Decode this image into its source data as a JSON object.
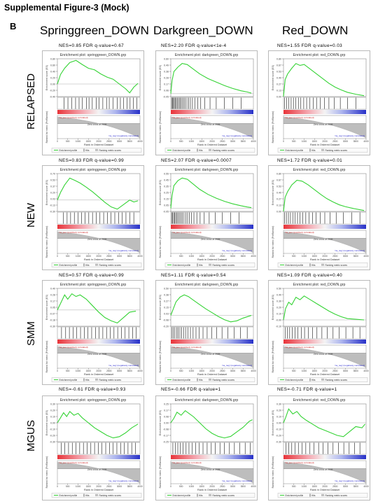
{
  "figure_title": "Supplemental Figure-3 (Mock)",
  "panel_letter": "B",
  "columns": [
    "Springgreen_DOWN",
    "Darkgreen_DOWN",
    "Red_DOWN"
  ],
  "rows": [
    "RELAPSED",
    "NEW",
    "SMM",
    "MGUS"
  ],
  "panel_text": {
    "enrich_titles": [
      "Enrichment plot: springgreen_DOWN.grp",
      "Enrichment plot: darkgreen_DOWN.grp",
      "Enrichment plot: red_DOWN.grp"
    ],
    "x_axis_label": "Rank in Ordered Dataset",
    "es_axis_label": "Enrichment score (ES)",
    "metric_axis_label": "Ranked list metric (PreRanked)",
    "zero_cross_label": "Zero cross at 2009",
    "positive_label": "'na_pos' (positively correlated)",
    "negative_label": "'na_neg' (negatively correlated)",
    "legend_es": "Enrichment profile",
    "legend_hits": "Hits",
    "legend_metric": "Ranking metric scores"
  },
  "chart_data": {
    "type": "line",
    "title": "",
    "subtitle": "",
    "xlabel": "Rank in Ordered Dataset",
    "ylabel": "Enrichment score (ES)",
    "xlim": [
      0,
      4000
    ],
    "line_color": "#35d335",
    "grid": false,
    "legend": "bottom",
    "panels": [
      {
        "row": "RELAPSED",
        "column": "Springgreen_DOWN",
        "stat_label": "NES=0.85 FDR q-value=0.67",
        "ylim": [
          -0.4,
          0.8
        ],
        "es_profile": [
          [
            0,
            0.0
          ],
          [
            150,
            0.3
          ],
          [
            350,
            0.5
          ],
          [
            600,
            0.68
          ],
          [
            900,
            0.75
          ],
          [
            1200,
            0.62
          ],
          [
            1500,
            0.5
          ],
          [
            1800,
            0.45
          ],
          [
            2100,
            0.32
          ],
          [
            2400,
            0.22
          ],
          [
            2700,
            0.15
          ],
          [
            3000,
            0.0
          ],
          [
            3300,
            -0.15
          ],
          [
            3500,
            -0.28
          ],
          [
            3700,
            -0.1
          ],
          [
            3900,
            0.02
          ]
        ],
        "hits": [
          320,
          510,
          700,
          880,
          1050,
          1210,
          1400,
          1530,
          1690,
          1880,
          2020,
          2200,
          2380,
          2510,
          2700,
          2900,
          3050,
          3200,
          3380,
          3520,
          3680,
          3850
        ]
      },
      {
        "row": "RELAPSED",
        "column": "Darkgreen_DOWN",
        "stat_label": "NES=2.20 FDR q-value<1e-4",
        "ylim": [
          -0.05,
          0.6
        ],
        "es_profile": [
          [
            0,
            0.0
          ],
          [
            60,
            0.22
          ],
          [
            150,
            0.38
          ],
          [
            350,
            0.46
          ],
          [
            550,
            0.52
          ],
          [
            800,
            0.5
          ],
          [
            1100,
            0.42
          ],
          [
            1400,
            0.34
          ],
          [
            1800,
            0.26
          ],
          [
            2200,
            0.2
          ],
          [
            2600,
            0.14
          ],
          [
            3000,
            0.09
          ],
          [
            3400,
            0.05
          ],
          [
            3700,
            0.03
          ],
          [
            3900,
            0.01
          ]
        ],
        "hits": [
          40,
          80,
          130,
          170,
          220,
          270,
          320,
          380,
          440,
          500,
          560,
          620,
          700,
          780,
          860,
          950,
          1050,
          1160,
          1300,
          1450,
          1650,
          1900,
          2200,
          2600,
          3000,
          3400
        ]
      },
      {
        "row": "RELAPSED",
        "column": "Red_DOWN",
        "stat_label": "NES=1.55 FDR q-value=0.03",
        "ylim": [
          0,
          0.8
        ],
        "es_profile": [
          [
            0,
            0.0
          ],
          [
            80,
            0.36
          ],
          [
            200,
            0.48
          ],
          [
            400,
            0.6
          ],
          [
            600,
            0.7
          ],
          [
            800,
            0.66
          ],
          [
            1000,
            0.68
          ],
          [
            1300,
            0.58
          ],
          [
            1600,
            0.48
          ],
          [
            1900,
            0.38
          ],
          [
            2200,
            0.28
          ],
          [
            2500,
            0.2
          ],
          [
            2800,
            0.14
          ],
          [
            3100,
            0.09
          ],
          [
            3500,
            0.05
          ],
          [
            3900,
            0.02
          ]
        ],
        "hits": [
          60,
          150,
          260,
          370,
          480,
          600,
          720,
          840,
          980,
          1120,
          1280,
          1440,
          1600,
          1780,
          1980,
          2200,
          2450,
          2750,
          3100,
          3500
        ]
      },
      {
        "row": "NEW",
        "column": "Springgreen_DOWN",
        "stat_label": "NES=0.83 FDR q-value=0.99",
        "ylim": [
          -0.3,
          0.7
        ],
        "es_profile": [
          [
            0,
            0.0
          ],
          [
            150,
            0.2
          ],
          [
            350,
            0.4
          ],
          [
            600,
            0.58
          ],
          [
            850,
            0.52
          ],
          [
            1100,
            0.45
          ],
          [
            1400,
            0.34
          ],
          [
            1700,
            0.22
          ],
          [
            2000,
            0.08
          ],
          [
            2300,
            -0.06
          ],
          [
            2600,
            -0.18
          ],
          [
            2900,
            -0.24
          ],
          [
            3200,
            -0.12
          ],
          [
            3500,
            0.0
          ],
          [
            3700,
            -0.05
          ],
          [
            3900,
            -0.02
          ]
        ],
        "hits": [
          280,
          470,
          640,
          820,
          1000,
          1170,
          1340,
          1520,
          1700,
          1880,
          2060,
          2240,
          2420,
          2600,
          2780,
          2960,
          3140,
          3320,
          3500,
          3700
        ]
      },
      {
        "row": "NEW",
        "column": "Darkgreen_DOWN",
        "stat_label": "NES=2.07 FDR q-value=0.0007",
        "ylim": [
          -0.05,
          0.55
        ],
        "es_profile": [
          [
            0,
            0.0
          ],
          [
            60,
            0.2
          ],
          [
            150,
            0.36
          ],
          [
            350,
            0.44
          ],
          [
            550,
            0.48
          ],
          [
            800,
            0.46
          ],
          [
            1100,
            0.38
          ],
          [
            1400,
            0.3
          ],
          [
            1800,
            0.22
          ],
          [
            2200,
            0.16
          ],
          [
            2600,
            0.11
          ],
          [
            3000,
            0.07
          ],
          [
            3400,
            0.04
          ],
          [
            3700,
            0.02
          ],
          [
            3900,
            0.01
          ]
        ],
        "hits": [
          40,
          90,
          140,
          190,
          240,
          300,
          360,
          420,
          490,
          560,
          640,
          720,
          810,
          900,
          1000,
          1120,
          1260,
          1420,
          1620,
          1860,
          2150,
          2500,
          2900,
          3300
        ]
      },
      {
        "row": "NEW",
        "column": "Red_DOWN",
        "stat_label": "NES=1.72 FDR q-value=0.01",
        "ylim": [
          0,
          0.8
        ],
        "es_profile": [
          [
            0,
            0.0
          ],
          [
            80,
            0.3
          ],
          [
            200,
            0.42
          ],
          [
            400,
            0.56
          ],
          [
            650,
            0.66
          ],
          [
            900,
            0.64
          ],
          [
            1200,
            0.56
          ],
          [
            1500,
            0.46
          ],
          [
            1800,
            0.36
          ],
          [
            2100,
            0.27
          ],
          [
            2400,
            0.2
          ],
          [
            2700,
            0.14
          ],
          [
            3000,
            0.1
          ],
          [
            3400,
            0.06
          ],
          [
            3900,
            0.02
          ]
        ],
        "hits": [
          60,
          140,
          240,
          340,
          450,
          560,
          680,
          800,
          940,
          1080,
          1240,
          1400,
          1580,
          1780,
          2000,
          2250,
          2550,
          2900,
          3300,
          3700
        ]
      },
      {
        "row": "SMM",
        "column": "Springgreen_DOWN",
        "stat_label": "NES=0.57 FDR q-value=0.99",
        "ylim": [
          -0.3,
          0.4
        ],
        "es_profile": [
          [
            0,
            0.0
          ],
          [
            150,
            0.12
          ],
          [
            350,
            0.28
          ],
          [
            500,
            0.2
          ],
          [
            700,
            0.3
          ],
          [
            900,
            0.25
          ],
          [
            1100,
            0.28
          ],
          [
            1400,
            0.2
          ],
          [
            1700,
            0.08
          ],
          [
            2000,
            -0.04
          ],
          [
            2300,
            -0.14
          ],
          [
            2600,
            -0.2
          ],
          [
            2900,
            -0.24
          ],
          [
            3200,
            -0.14
          ],
          [
            3500,
            -0.04
          ],
          [
            3800,
            -0.02
          ]
        ],
        "hits": [
          200,
          400,
          580,
          760,
          940,
          1120,
          1300,
          1480,
          1660,
          1840,
          2020,
          2200,
          2380,
          2560,
          2740,
          2920,
          3100,
          3280,
          3460,
          3640,
          3820
        ]
      },
      {
        "row": "SMM",
        "column": "Darkgreen_DOWN",
        "stat_label": "NES=1.11 FDR q-value=0.54",
        "ylim": [
          -0.2,
          0.5
        ],
        "es_profile": [
          [
            0,
            0.0
          ],
          [
            100,
            0.1
          ],
          [
            250,
            0.25
          ],
          [
            450,
            0.34
          ],
          [
            650,
            0.38
          ],
          [
            850,
            0.35
          ],
          [
            1100,
            0.28
          ],
          [
            1400,
            0.2
          ],
          [
            1700,
            0.12
          ],
          [
            2000,
            0.05
          ],
          [
            2300,
            -0.02
          ],
          [
            2600,
            -0.08
          ],
          [
            2900,
            -0.12
          ],
          [
            3200,
            -0.1
          ],
          [
            3500,
            -0.05
          ],
          [
            3900,
            0.0
          ]
        ],
        "hits": [
          60,
          130,
          200,
          280,
          360,
          440,
          530,
          620,
          720,
          830,
          950,
          1080,
          1220,
          1380,
          1560,
          1760,
          1980,
          2220,
          2480,
          2760,
          3060,
          3380,
          3700
        ]
      },
      {
        "row": "SMM",
        "column": "Red_DOWN",
        "stat_label": "NES=1.09 FDR q-value=0.40",
        "ylim": [
          -0.1,
          0.5
        ],
        "es_profile": [
          [
            0,
            0.0
          ],
          [
            100,
            0.18
          ],
          [
            250,
            0.28
          ],
          [
            400,
            0.24
          ],
          [
            600,
            0.36
          ],
          [
            800,
            0.32
          ],
          [
            1000,
            0.38
          ],
          [
            1300,
            0.32
          ],
          [
            1600,
            0.26
          ],
          [
            1900,
            0.2
          ],
          [
            2200,
            0.14
          ],
          [
            2500,
            0.09
          ],
          [
            2800,
            0.05
          ],
          [
            3100,
            0.02
          ],
          [
            3500,
            0.01
          ],
          [
            3900,
            0.0
          ]
        ],
        "hits": [
          80,
          180,
          300,
          420,
          560,
          700,
          860,
          1020,
          1200,
          1400,
          1620,
          1860,
          2120,
          2400,
          2700,
          3020,
          3360,
          3700
        ]
      },
      {
        "row": "MGUS",
        "column": "Springgreen_DOWN",
        "stat_label": "NES=-0.61 FDR q-value=0.93",
        "ylim": [
          -0.3,
          0.3
        ],
        "es_profile": [
          [
            0,
            0.0
          ],
          [
            150,
            0.08
          ],
          [
            300,
            0.16
          ],
          [
            450,
            0.1
          ],
          [
            600,
            0.18
          ],
          [
            800,
            0.12
          ],
          [
            1000,
            0.15
          ],
          [
            1200,
            0.08
          ],
          [
            1500,
            0.0
          ],
          [
            1800,
            -0.08
          ],
          [
            2100,
            -0.14
          ],
          [
            2400,
            -0.2
          ],
          [
            2700,
            -0.24
          ],
          [
            3000,
            -0.22
          ],
          [
            3300,
            -0.16
          ],
          [
            3600,
            -0.08
          ],
          [
            3900,
            -0.02
          ]
        ],
        "hits": [
          180,
          360,
          540,
          720,
          900,
          1080,
          1260,
          1440,
          1620,
          1800,
          1980,
          2160,
          2340,
          2520,
          2700,
          2880,
          3060,
          3240,
          3420,
          3600,
          3780
        ]
      },
      {
        "row": "MGUS",
        "column": "Darkgreen_DOWN",
        "stat_label": "NES=-0.66 FDR q-value=1",
        "ylim": [
          -0.25,
          0.25
        ],
        "es_profile": [
          [
            0,
            0.0
          ],
          [
            150,
            0.06
          ],
          [
            300,
            0.14
          ],
          [
            500,
            0.1
          ],
          [
            700,
            0.16
          ],
          [
            900,
            0.12
          ],
          [
            1100,
            0.08
          ],
          [
            1400,
            0.0
          ],
          [
            1700,
            -0.08
          ],
          [
            2000,
            -0.14
          ],
          [
            2300,
            -0.18
          ],
          [
            2600,
            -0.2
          ],
          [
            2900,
            -0.18
          ],
          [
            3200,
            -0.12
          ],
          [
            3500,
            -0.06
          ],
          [
            3800,
            0.02
          ],
          [
            3950,
            0.04
          ]
        ],
        "hits": [
          100,
          220,
          340,
          460,
          600,
          740,
          880,
          1040,
          1200,
          1380,
          1560,
          1760,
          1960,
          2160,
          2380,
          2600,
          2840,
          3080,
          3340,
          3600,
          3850
        ]
      },
      {
        "row": "MGUS",
        "column": "Red_DOWN",
        "stat_label": "NES=-0.71 FDR q-value=1",
        "ylim": [
          -0.3,
          0.3
        ],
        "es_profile": [
          [
            0,
            0.0
          ],
          [
            100,
            0.08
          ],
          [
            250,
            0.22
          ],
          [
            450,
            0.14
          ],
          [
            650,
            0.18
          ],
          [
            850,
            0.1
          ],
          [
            1100,
            0.04
          ],
          [
            1400,
            -0.02
          ],
          [
            1700,
            -0.08
          ],
          [
            2000,
            -0.12
          ],
          [
            2300,
            -0.16
          ],
          [
            2600,
            -0.2
          ],
          [
            2900,
            -0.22
          ],
          [
            3200,
            -0.14
          ],
          [
            3500,
            -0.06
          ],
          [
            3800,
            -0.08
          ],
          [
            3950,
            -0.02
          ]
        ],
        "hits": [
          120,
          260,
          400,
          560,
          720,
          900,
          1080,
          1280,
          1480,
          1700,
          1920,
          2160,
          2400,
          2660,
          2920,
          3180,
          3440,
          3700
        ]
      }
    ]
  }
}
